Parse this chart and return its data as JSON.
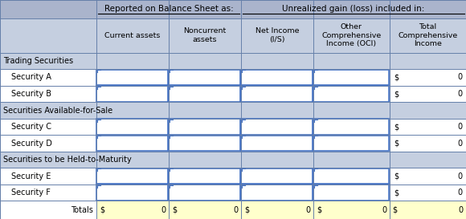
{
  "header1_cols": [
    1,
    2
  ],
  "header2_cols": [
    2,
    3,
    4
  ],
  "header1_text": "Reported on Balance Sheet as:",
  "header2_text": "Unrealized gain (loss) included in:",
  "col_headers": [
    "Current assets",
    "Noncurrent\nassets",
    "Net Income\n(I/S)",
    "Other\nComprehensive\nIncome (OCI)",
    "Total\nComprehensive\nIncome"
  ],
  "row_groups": [
    {
      "label": "Trading Securities",
      "is_header": true,
      "rows": [
        {
          "label": "Security A",
          "values": [
            null,
            null,
            null,
            null,
            {
              "dollar": true,
              "val": 0
            }
          ]
        },
        {
          "label": "Security B",
          "values": [
            null,
            null,
            null,
            null,
            {
              "dollar": true,
              "val": 0
            }
          ]
        }
      ]
    },
    {
      "label": "Securities Available-for-Sale",
      "is_header": true,
      "rows": [
        {
          "label": "Security C",
          "values": [
            null,
            null,
            null,
            null,
            {
              "dollar": true,
              "val": 0
            }
          ]
        },
        {
          "label": "Security D",
          "values": [
            null,
            null,
            null,
            null,
            {
              "dollar": true,
              "val": 0
            }
          ]
        }
      ]
    },
    {
      "label": "Securities to be Held-to-Maturity",
      "is_header": true,
      "rows": [
        {
          "label": "Security E",
          "values": [
            null,
            null,
            null,
            null,
            {
              "dollar": true,
              "val": 0
            }
          ]
        },
        {
          "label": "Security F",
          "values": [
            null,
            null,
            null,
            null,
            {
              "dollar": true,
              "val": 0
            }
          ]
        }
      ]
    }
  ],
  "totals_label": "Totals",
  "totals_values": [
    {
      "dollar": true,
      "val": 0
    },
    {
      "dollar": true,
      "val": 0
    },
    {
      "dollar": true,
      "val": 0
    },
    {
      "dollar": true,
      "val": 0
    },
    {
      "dollar": true,
      "val": 0
    }
  ],
  "header_bg": "#aab4cc",
  "subheader_bg": "#c5cfe0",
  "white_bg": "#ffffff",
  "yellow_bg": "#ffffcc",
  "border_color": "#6680aa",
  "text_color": "#000000",
  "grid_color": "#9baac0",
  "underline_color": "#5577aa",
  "figsize": [
    5.8,
    2.73
  ],
  "dpi": 100
}
